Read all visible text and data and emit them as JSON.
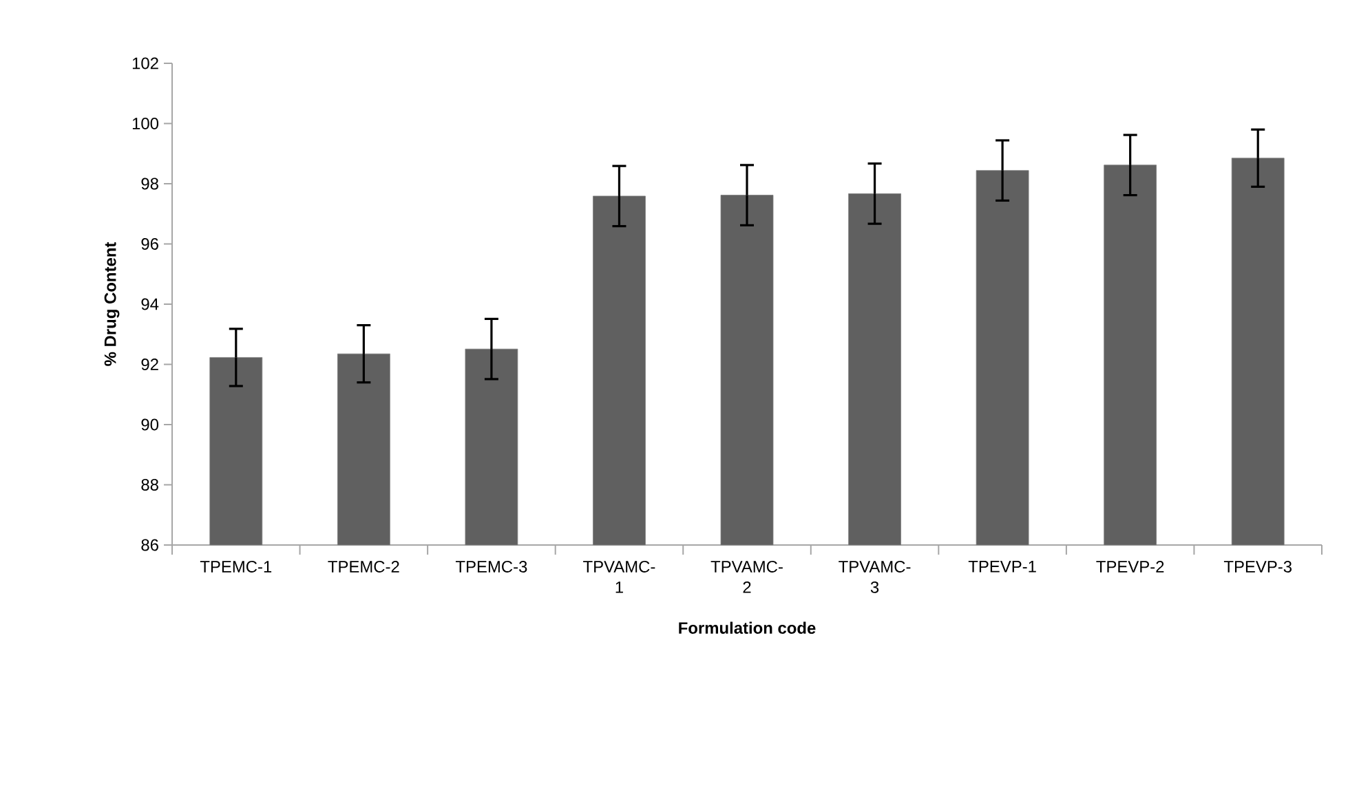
{
  "chart_data": {
    "type": "bar",
    "xlabel": "Formulation code",
    "ylabel": "% Drug Content",
    "categories": [
      "TPEMC-1",
      "TPEMC-2",
      "TPEMC-3",
      "TPVAMC-1",
      "TPVAMC-2",
      "TPVAMC-3",
      "TPEVP-1",
      "TPEVP-2",
      "TPEVP-3"
    ],
    "values": [
      92.23,
      92.35,
      92.51,
      97.59,
      97.62,
      97.67,
      98.44,
      98.62,
      98.85
    ],
    "errors": [
      0.95,
      0.95,
      1.0,
      1.0,
      1.0,
      1.0,
      1.0,
      1.0,
      0.95
    ],
    "color": "#606060",
    "ylim": [
      86,
      102
    ],
    "yticks": [
      86,
      88,
      90,
      92,
      94,
      96,
      98,
      100,
      102
    ]
  }
}
